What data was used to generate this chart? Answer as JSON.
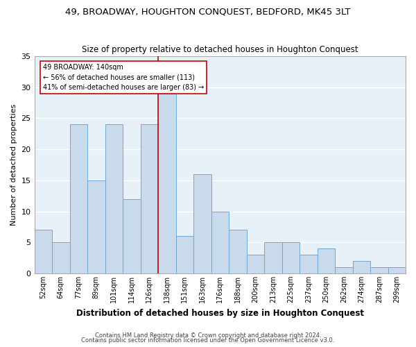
{
  "title": "49, BROADWAY, HOUGHTON CONQUEST, BEDFORD, MK45 3LT",
  "subtitle": "Size of property relative to detached houses in Houghton Conquest",
  "xlabel": "Distribution of detached houses by size in Houghton Conquest",
  "ylabel": "Number of detached properties",
  "bin_labels": [
    "52sqm",
    "64sqm",
    "77sqm",
    "89sqm",
    "101sqm",
    "114sqm",
    "126sqm",
    "138sqm",
    "151sqm",
    "163sqm",
    "176sqm",
    "188sqm",
    "200sqm",
    "213sqm",
    "225sqm",
    "237sqm",
    "250sqm",
    "262sqm",
    "274sqm",
    "287sqm",
    "299sqm"
  ],
  "bar_values": [
    7,
    5,
    24,
    15,
    24,
    12,
    24,
    29,
    6,
    16,
    10,
    7,
    3,
    5,
    5,
    3,
    4,
    1,
    2,
    1,
    1
  ],
  "bar_color": "#c8daec",
  "bar_edge_color": "#6fa8d0",
  "background_color": "#ffffff",
  "plot_bg_color": "#e8f0f8",
  "grid_color": "#ffffff",
  "marker_label": "49 BROADWAY: 140sqm",
  "annotation_line1": "← 56% of detached houses are smaller (113)",
  "annotation_line2": "41% of semi-detached houses are larger (83) →",
  "marker_bin_index": 7,
  "ylim": [
    0,
    35
  ],
  "yticks": [
    0,
    5,
    10,
    15,
    20,
    25,
    30,
    35
  ],
  "footer1": "Contains HM Land Registry data © Crown copyright and database right 2024.",
  "footer2": "Contains public sector information licensed under the Open Government Licence v3.0."
}
